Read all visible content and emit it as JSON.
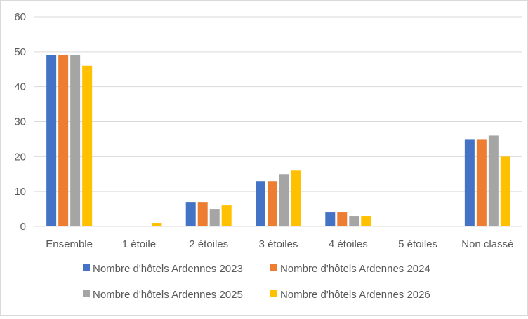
{
  "chart_data": {
    "type": "bar",
    "title": "",
    "xlabel": "",
    "ylabel": "",
    "ylim": [
      0,
      60
    ],
    "yticks": [
      0,
      10,
      20,
      30,
      40,
      50,
      60
    ],
    "grid": true,
    "legend_position": "bottom",
    "categories": [
      "Ensemble",
      "1 étoile",
      "2 étoiles",
      "3 étoiles",
      "4 étoiles",
      "5 étoiles",
      "Non classé"
    ],
    "series": [
      {
        "name": "Nombre d'hôtels Ardennes 2023",
        "color": "#4472C4",
        "values": [
          49,
          0,
          7,
          13,
          4,
          0,
          25
        ]
      },
      {
        "name": "Nombre d'hôtels Ardennes 2024",
        "color": "#ED7D31",
        "values": [
          49,
          0,
          7,
          13,
          4,
          0,
          25
        ]
      },
      {
        "name": "Nombre d'hôtels Ardennes 2025",
        "color": "#A5A5A5",
        "values": [
          49,
          0,
          5,
          15,
          3,
          0,
          26
        ]
      },
      {
        "name": "Nombre d'hôtels Ardennes 2026",
        "color": "#FFC000",
        "values": [
          46,
          1,
          6,
          16,
          3,
          0,
          20
        ]
      }
    ]
  }
}
